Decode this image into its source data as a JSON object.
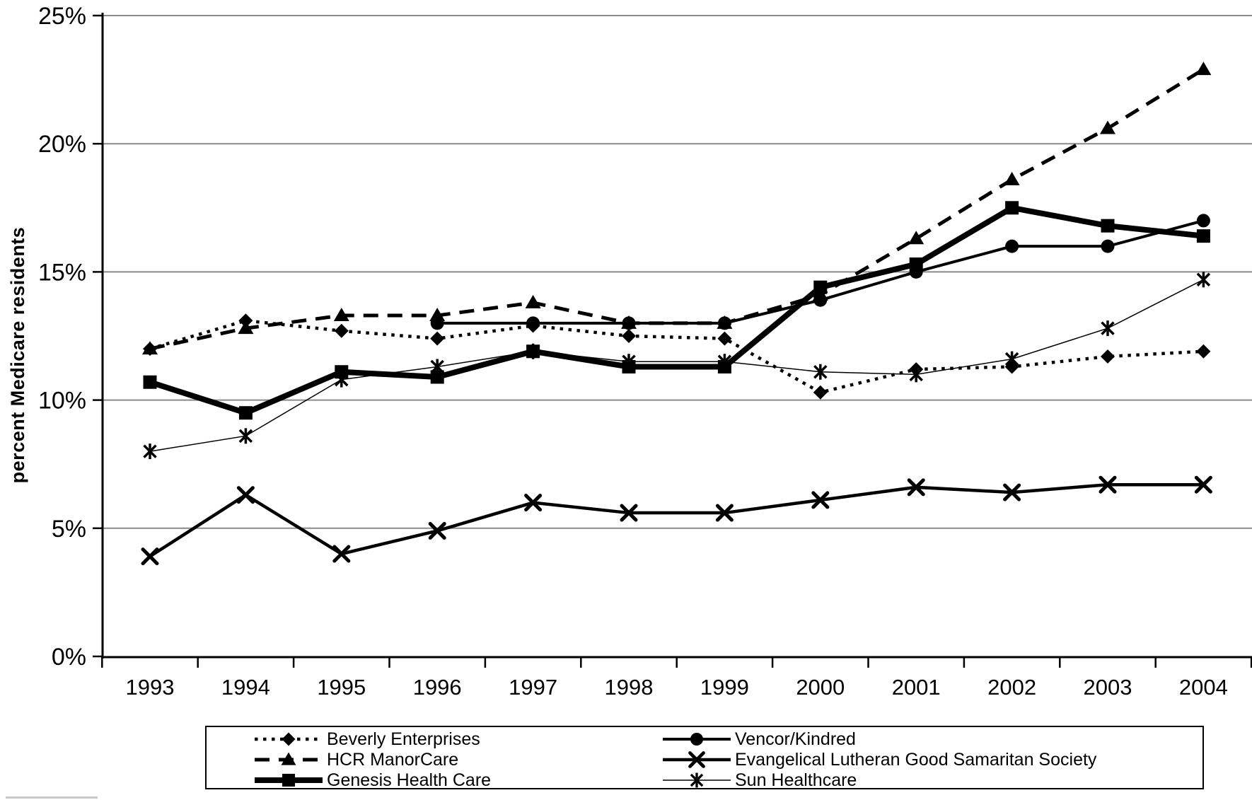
{
  "chart_data": {
    "type": "line",
    "title": "",
    "xlabel": "",
    "ylabel": "percent Medicare residents",
    "ylim": [
      0,
      25
    ],
    "yticks": [
      0,
      5,
      10,
      15,
      20,
      25
    ],
    "ytick_labels": [
      "0%",
      "5%",
      "10%",
      "15%",
      "20%",
      "25%"
    ],
    "categories": [
      "1993",
      "1994",
      "1995",
      "1996",
      "1997",
      "1998",
      "1999",
      "2000",
      "2001",
      "2002",
      "2003",
      "2004"
    ],
    "grid": "horizontal",
    "legend_position": "bottom-box-two-columns",
    "line_color": "#000000",
    "gridline_color": "#8a8a8a",
    "series": [
      {
        "name": "Beverly Enterprises",
        "marker": "diamond",
        "line_style": "dotted",
        "line_width": 4.5,
        "values": [
          12.0,
          13.1,
          12.7,
          12.4,
          12.9,
          12.5,
          12.4,
          10.3,
          11.2,
          11.3,
          11.7,
          11.9
        ]
      },
      {
        "name": "HCR ManorCare",
        "marker": "triangle",
        "line_style": "dashed",
        "line_width": 5,
        "values": [
          12.0,
          12.8,
          13.3,
          13.3,
          13.8,
          13.0,
          13.0,
          14.1,
          16.3,
          18.6,
          20.6,
          22.9
        ]
      },
      {
        "name": "Genesis Health Care",
        "marker": "square",
        "line_style": "solid",
        "line_width": 8,
        "values": [
          10.7,
          9.5,
          11.1,
          10.9,
          11.9,
          11.3,
          11.3,
          14.4,
          15.3,
          17.5,
          16.8,
          16.4
        ]
      },
      {
        "name": "Vencor/Kindred",
        "marker": "circle",
        "line_style": "solid",
        "line_width": 4,
        "values": [
          null,
          null,
          null,
          13.0,
          13.0,
          13.0,
          13.0,
          13.9,
          15.0,
          16.0,
          16.0,
          17.0
        ]
      },
      {
        "name": "Evangelical Lutheran Good Samaritan Society",
        "marker": "x",
        "line_style": "solid",
        "line_width": 4.5,
        "values": [
          3.9,
          6.3,
          4.0,
          4.9,
          6.0,
          5.6,
          5.6,
          6.1,
          6.6,
          6.4,
          6.7,
          6.7
        ]
      },
      {
        "name": "Sun Healthcare",
        "marker": "asterisk",
        "line_style": "solid",
        "line_width": 1.5,
        "values": [
          8.0,
          8.6,
          10.8,
          11.3,
          11.9,
          11.5,
          11.5,
          11.1,
          11.0,
          11.6,
          12.8,
          14.7
        ]
      }
    ]
  }
}
